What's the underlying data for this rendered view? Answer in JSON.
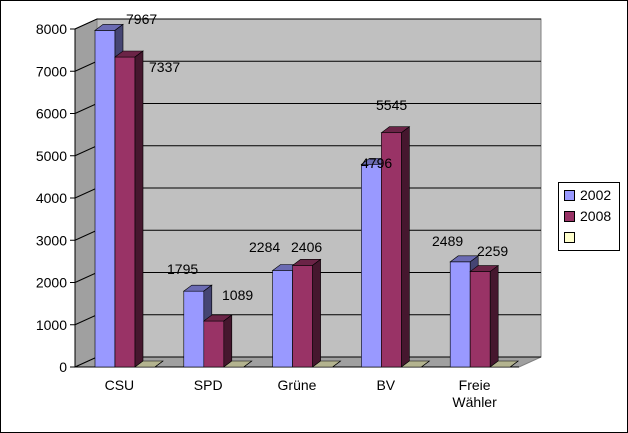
{
  "chart_data": {
    "type": "bar",
    "categories": [
      "CSU",
      "SPD",
      "Grüne",
      "BV",
      "Freie Wähler"
    ],
    "series": [
      {
        "name": "2002",
        "values": [
          7967,
          1795,
          2284,
          4796,
          2489
        ],
        "color": "#9999ff"
      },
      {
        "name": "2008",
        "values": [
          7337,
          1089,
          2406,
          5545,
          2259
        ],
        "color": "#993366"
      },
      {
        "name": "",
        "values": [
          0,
          0,
          0,
          0,
          0
        ],
        "color": "#ffffcc"
      }
    ],
    "y_ticks": [
      "0",
      "1000",
      "2000",
      "3000",
      "4000",
      "5000",
      "6000",
      "7000",
      "8000"
    ],
    "ylim": [
      0,
      8000
    ],
    "grid": true,
    "legend_position": "right",
    "plot_background": "#c0c0c0",
    "three_d": true
  }
}
